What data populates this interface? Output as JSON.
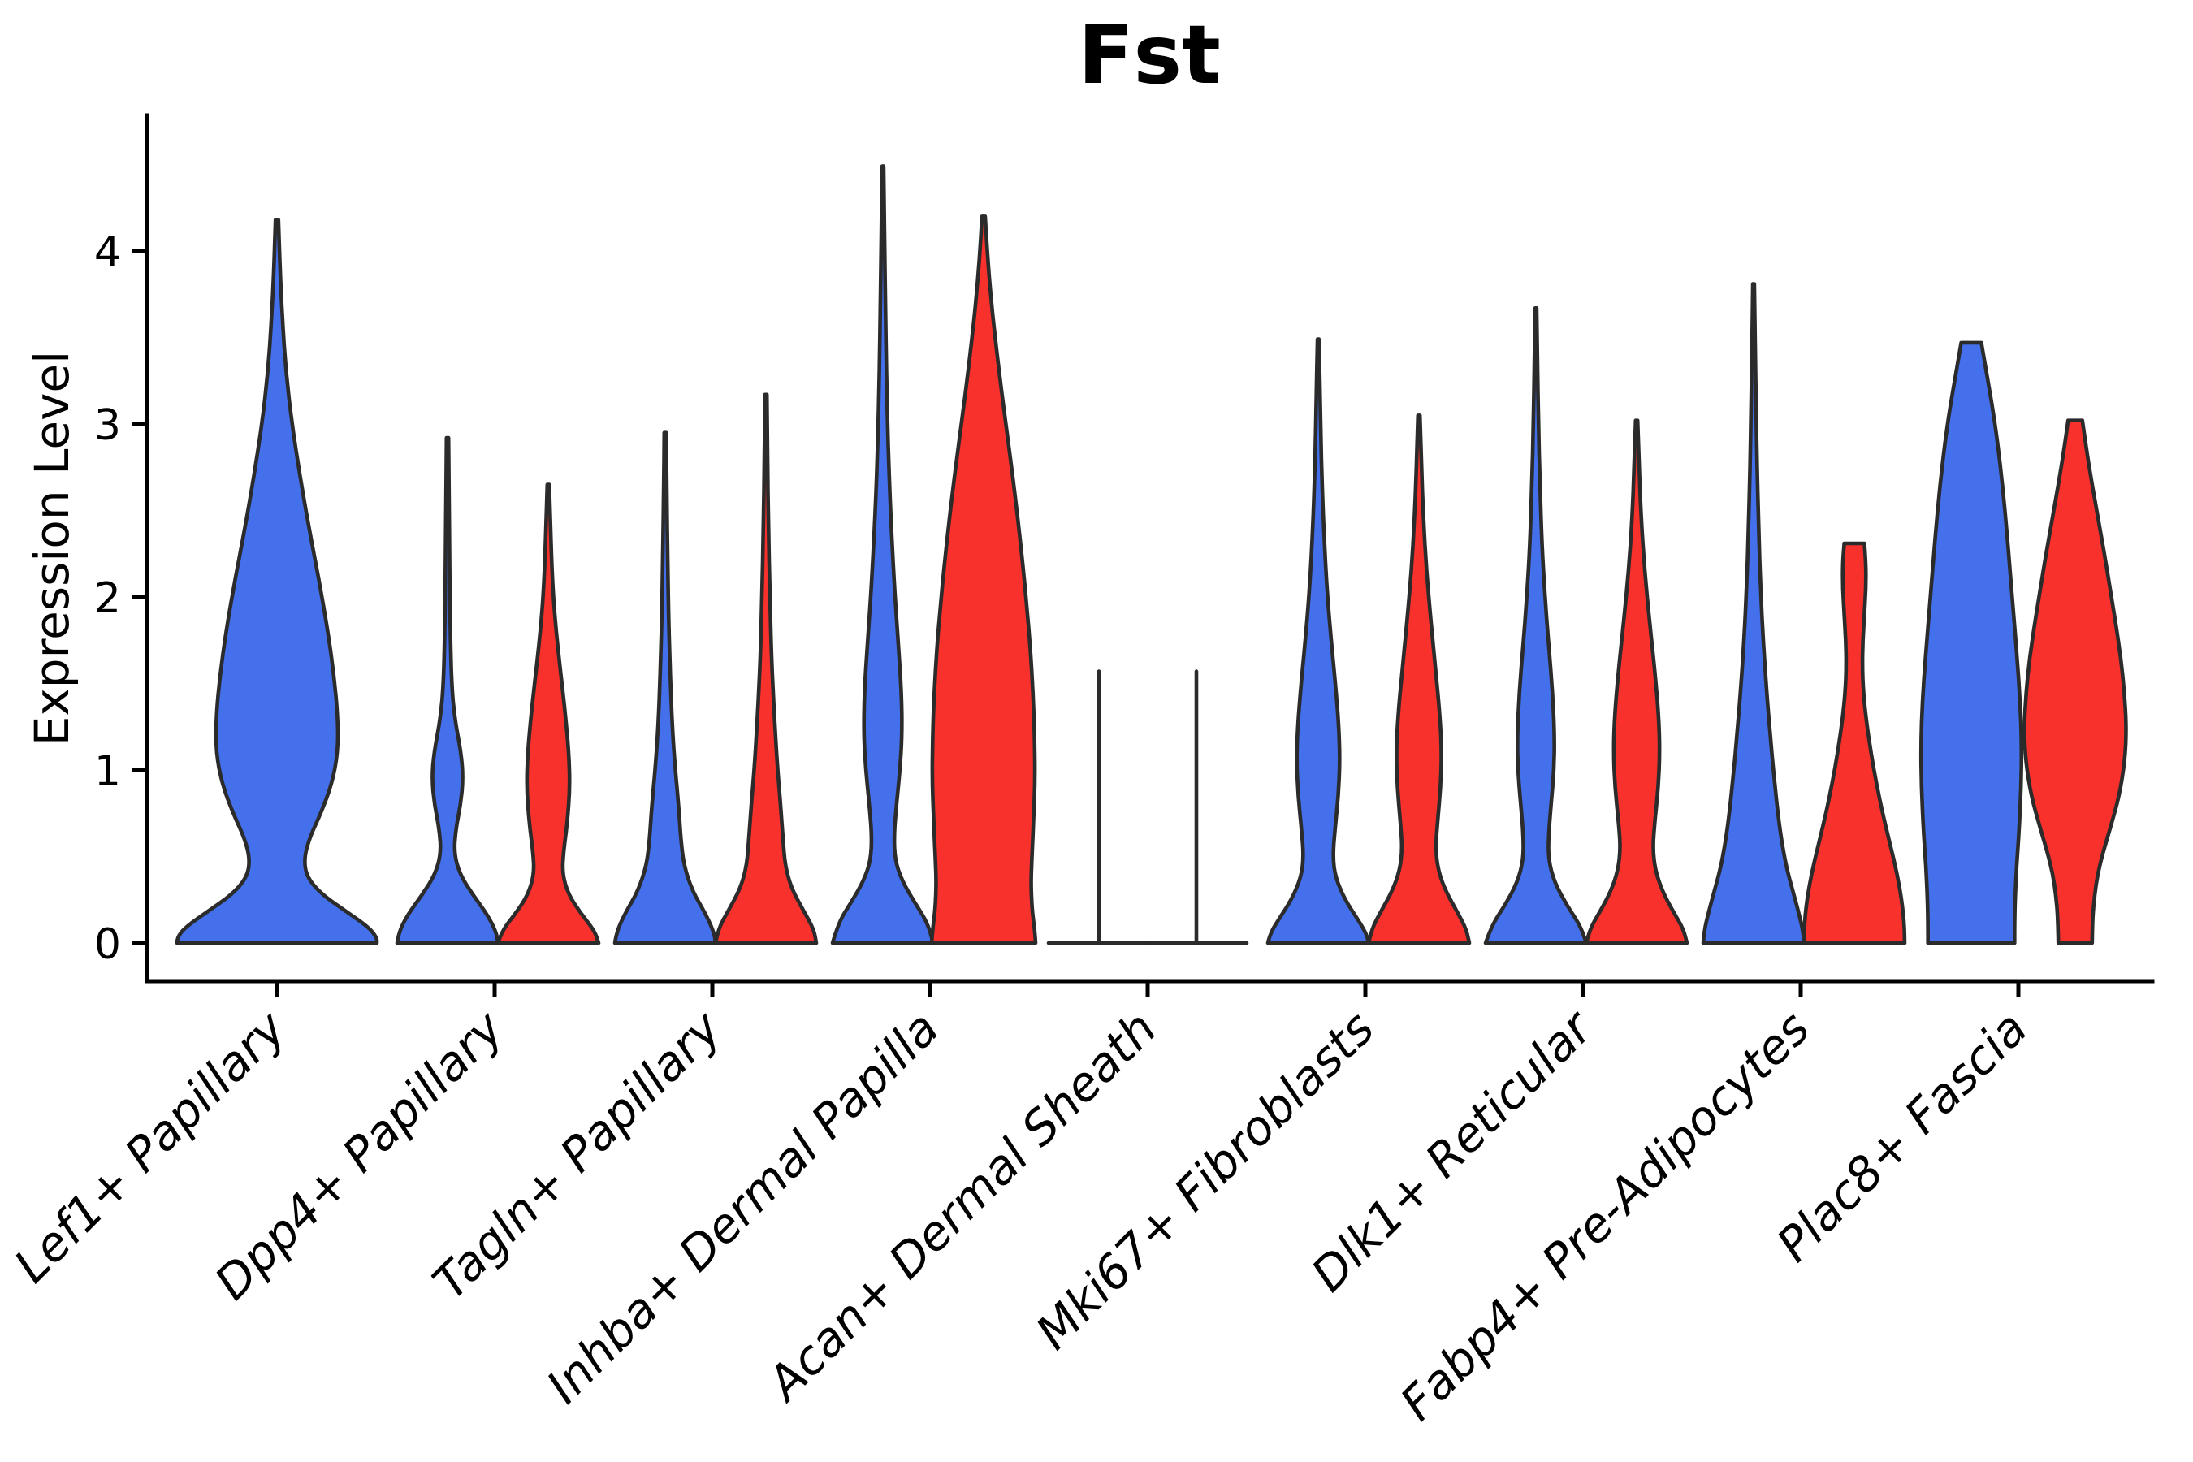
{
  "title": "Fst",
  "y_axis": {
    "label": "Expression Level",
    "ticks": [
      "0",
      "1",
      "2",
      "3",
      "4"
    ]
  },
  "x_axis": {
    "tick_labels": [
      "Lef1+ Papillary",
      "Dpp4+ Papillary",
      "Tagln+ Papillary",
      "Inhba+ Dermal Papilla",
      "Acan+ Dermal Sheath",
      "Mki67+ Fibroblasts",
      "Dlk1+ Reticular",
      "Fabp4+ Pre-Adipocytes",
      "Plac8+ Fascia"
    ]
  },
  "colors": {
    "blue": "#4470EB",
    "red": "#F9312D",
    "outline": "#2B2B2B",
    "axis": "#000000",
    "text": "#000000"
  },
  "chart_data": {
    "type": "violin",
    "title": "Fst",
    "ylabel": "Expression Level",
    "ylim": [
      0,
      4.78
    ],
    "yticks": [
      0,
      1,
      2,
      3,
      4
    ],
    "grid": false,
    "legend": "none",
    "categories": [
      "Lef1+ Papillary",
      "Dpp4+ Papillary",
      "Tagln+ Papillary",
      "Inhba+ Dermal Papilla",
      "Acan+ Dermal Sheath",
      "Mki67+ Fibroblasts",
      "Dlk1+ Reticular",
      "Fabp4+ Pre-Adipocytes",
      "Plac8+ Fascia"
    ],
    "series": [
      {
        "key": "blue",
        "color": "#4470EB"
      },
      {
        "key": "red",
        "color": "#F9312D"
      }
    ],
    "violins": [
      {
        "category_index": 0,
        "series": "blue",
        "shape": "violin",
        "max_expression": 4.18,
        "center_offset": 0,
        "half_width": 123,
        "profile": [
          [
            4.18,
            0.015
          ],
          [
            3.9,
            0.03
          ],
          [
            3.6,
            0.055
          ],
          [
            3.3,
            0.09
          ],
          [
            3.0,
            0.15
          ],
          [
            2.7,
            0.23
          ],
          [
            2.4,
            0.32
          ],
          [
            2.1,
            0.42
          ],
          [
            1.8,
            0.51
          ],
          [
            1.55,
            0.57
          ],
          [
            1.3,
            0.61
          ],
          [
            1.1,
            0.61
          ],
          [
            0.92,
            0.55
          ],
          [
            0.75,
            0.44
          ],
          [
            0.6,
            0.32
          ],
          [
            0.48,
            0.27
          ],
          [
            0.38,
            0.3
          ],
          [
            0.28,
            0.45
          ],
          [
            0.18,
            0.7
          ],
          [
            0.09,
            0.92
          ],
          [
            0.03,
            1.0
          ],
          [
            0,
            1.0
          ]
        ]
      },
      {
        "category_index": 1,
        "series": "blue",
        "shape": "violin",
        "max_expression": 2.92,
        "center_offset": -58,
        "half_width": 62,
        "profile": [
          [
            2.92,
            0.02
          ],
          [
            2.6,
            0.03
          ],
          [
            2.2,
            0.04
          ],
          [
            1.8,
            0.055
          ],
          [
            1.5,
            0.08
          ],
          [
            1.3,
            0.14
          ],
          [
            1.1,
            0.27
          ],
          [
            0.95,
            0.31
          ],
          [
            0.8,
            0.26
          ],
          [
            0.65,
            0.16
          ],
          [
            0.52,
            0.13
          ],
          [
            0.4,
            0.24
          ],
          [
            0.28,
            0.5
          ],
          [
            0.16,
            0.8
          ],
          [
            0.06,
            0.97
          ],
          [
            0,
            1.0
          ]
        ]
      },
      {
        "category_index": 1,
        "series": "red",
        "shape": "violin",
        "max_expression": 2.65,
        "center_offset": 66,
        "half_width": 62,
        "profile": [
          [
            2.65,
            0.02
          ],
          [
            2.4,
            0.045
          ],
          [
            2.1,
            0.08
          ],
          [
            1.85,
            0.14
          ],
          [
            1.6,
            0.23
          ],
          [
            1.35,
            0.33
          ],
          [
            1.1,
            0.41
          ],
          [
            0.9,
            0.43
          ],
          [
            0.7,
            0.38
          ],
          [
            0.52,
            0.3
          ],
          [
            0.4,
            0.28
          ],
          [
            0.28,
            0.4
          ],
          [
            0.17,
            0.65
          ],
          [
            0.07,
            0.92
          ],
          [
            0,
            1.0
          ]
        ]
      },
      {
        "category_index": 2,
        "series": "blue",
        "shape": "violin",
        "max_expression": 2.95,
        "center_offset": -58,
        "half_width": 62,
        "profile": [
          [
            2.95,
            0.02
          ],
          [
            2.6,
            0.03
          ],
          [
            2.2,
            0.05
          ],
          [
            1.85,
            0.07
          ],
          [
            1.55,
            0.1
          ],
          [
            1.25,
            0.14
          ],
          [
            1.0,
            0.2
          ],
          [
            0.78,
            0.27
          ],
          [
            0.6,
            0.31
          ],
          [
            0.45,
            0.37
          ],
          [
            0.3,
            0.54
          ],
          [
            0.17,
            0.8
          ],
          [
            0.06,
            0.97
          ],
          [
            0,
            1.0
          ]
        ]
      },
      {
        "category_index": 2,
        "series": "red",
        "shape": "violin",
        "max_expression": 3.17,
        "center_offset": 66,
        "half_width": 62,
        "profile": [
          [
            3.17,
            0.02
          ],
          [
            2.8,
            0.03
          ],
          [
            2.4,
            0.05
          ],
          [
            2.0,
            0.08
          ],
          [
            1.65,
            0.11
          ],
          [
            1.35,
            0.16
          ],
          [
            1.05,
            0.22
          ],
          [
            0.8,
            0.29
          ],
          [
            0.6,
            0.34
          ],
          [
            0.45,
            0.38
          ],
          [
            0.32,
            0.5
          ],
          [
            0.19,
            0.74
          ],
          [
            0.08,
            0.95
          ],
          [
            0,
            1.0
          ]
        ]
      },
      {
        "category_index": 3,
        "series": "blue",
        "shape": "violin",
        "max_expression": 4.49,
        "center_offset": -58,
        "half_width": 62,
        "profile": [
          [
            4.49,
            0.015
          ],
          [
            4.1,
            0.03
          ],
          [
            3.7,
            0.05
          ],
          [
            3.3,
            0.07
          ],
          [
            2.9,
            0.1
          ],
          [
            2.5,
            0.15
          ],
          [
            2.1,
            0.22
          ],
          [
            1.75,
            0.3
          ],
          [
            1.45,
            0.37
          ],
          [
            1.2,
            0.38
          ],
          [
            1.0,
            0.34
          ],
          [
            0.8,
            0.27
          ],
          [
            0.62,
            0.22
          ],
          [
            0.48,
            0.24
          ],
          [
            0.36,
            0.38
          ],
          [
            0.24,
            0.62
          ],
          [
            0.12,
            0.88
          ],
          [
            0,
            1.0
          ]
        ]
      },
      {
        "category_index": 3,
        "series": "red",
        "shape": "violin",
        "max_expression": 4.2,
        "center_offset": 66,
        "half_width": 64,
        "profile": [
          [
            4.2,
            0.03
          ],
          [
            3.95,
            0.08
          ],
          [
            3.7,
            0.15
          ],
          [
            3.45,
            0.24
          ],
          [
            3.2,
            0.34
          ],
          [
            2.95,
            0.45
          ],
          [
            2.7,
            0.56
          ],
          [
            2.45,
            0.66
          ],
          [
            2.2,
            0.75
          ],
          [
            1.95,
            0.83
          ],
          [
            1.7,
            0.9
          ],
          [
            1.45,
            0.95
          ],
          [
            1.2,
            0.98
          ],
          [
            0.95,
            0.99
          ],
          [
            0.7,
            0.96
          ],
          [
            0.5,
            0.93
          ],
          [
            0.35,
            0.91
          ],
          [
            0.2,
            0.93
          ],
          [
            0.08,
            0.98
          ],
          [
            0,
            1.0
          ]
        ]
      },
      {
        "category_index": 4,
        "series": "blue",
        "shape": "line",
        "max_expression": 1.57,
        "center_offset": -60,
        "half_width": 0,
        "baseline_half_width": 62
      },
      {
        "category_index": 4,
        "series": "red",
        "shape": "line",
        "max_expression": 1.57,
        "center_offset": 60,
        "half_width": 0,
        "baseline_half_width": 62
      },
      {
        "category_index": 5,
        "series": "blue",
        "shape": "violin",
        "max_expression": 3.49,
        "center_offset": -58,
        "half_width": 62,
        "profile": [
          [
            3.49,
            0.015
          ],
          [
            3.15,
            0.04
          ],
          [
            2.8,
            0.06
          ],
          [
            2.45,
            0.1
          ],
          [
            2.1,
            0.16
          ],
          [
            1.8,
            0.24
          ],
          [
            1.5,
            0.34
          ],
          [
            1.25,
            0.41
          ],
          [
            1.05,
            0.43
          ],
          [
            0.85,
            0.4
          ],
          [
            0.65,
            0.33
          ],
          [
            0.5,
            0.29
          ],
          [
            0.38,
            0.34
          ],
          [
            0.25,
            0.53
          ],
          [
            0.13,
            0.8
          ],
          [
            0.05,
            0.96
          ],
          [
            0,
            1.0
          ]
        ]
      },
      {
        "category_index": 5,
        "series": "red",
        "shape": "violin",
        "max_expression": 3.05,
        "center_offset": 66,
        "half_width": 62,
        "profile": [
          [
            3.05,
            0.02
          ],
          [
            2.75,
            0.05
          ],
          [
            2.45,
            0.09
          ],
          [
            2.15,
            0.15
          ],
          [
            1.85,
            0.24
          ],
          [
            1.55,
            0.34
          ],
          [
            1.3,
            0.42
          ],
          [
            1.1,
            0.45
          ],
          [
            0.9,
            0.43
          ],
          [
            0.7,
            0.37
          ],
          [
            0.55,
            0.33
          ],
          [
            0.42,
            0.38
          ],
          [
            0.3,
            0.53
          ],
          [
            0.18,
            0.76
          ],
          [
            0.08,
            0.94
          ],
          [
            0,
            1.0
          ]
        ]
      },
      {
        "category_index": 6,
        "series": "blue",
        "shape": "violin",
        "max_expression": 3.67,
        "center_offset": -58,
        "half_width": 62,
        "profile": [
          [
            3.67,
            0.015
          ],
          [
            3.35,
            0.03
          ],
          [
            3.0,
            0.05
          ],
          [
            2.65,
            0.08
          ],
          [
            2.3,
            0.12
          ],
          [
            2.0,
            0.18
          ],
          [
            1.7,
            0.26
          ],
          [
            1.45,
            0.33
          ],
          [
            1.2,
            0.37
          ],
          [
            1.0,
            0.36
          ],
          [
            0.8,
            0.3
          ],
          [
            0.62,
            0.25
          ],
          [
            0.48,
            0.25
          ],
          [
            0.35,
            0.37
          ],
          [
            0.22,
            0.61
          ],
          [
            0.1,
            0.88
          ],
          [
            0,
            1.0
          ]
        ]
      },
      {
        "category_index": 6,
        "series": "red",
        "shape": "violin",
        "max_expression": 3.02,
        "center_offset": 66,
        "half_width": 62,
        "profile": [
          [
            3.02,
            0.02
          ],
          [
            2.75,
            0.05
          ],
          [
            2.45,
            0.09
          ],
          [
            2.15,
            0.16
          ],
          [
            1.85,
            0.26
          ],
          [
            1.55,
            0.37
          ],
          [
            1.3,
            0.44
          ],
          [
            1.1,
            0.46
          ],
          [
            0.9,
            0.43
          ],
          [
            0.7,
            0.36
          ],
          [
            0.55,
            0.32
          ],
          [
            0.42,
            0.37
          ],
          [
            0.3,
            0.51
          ],
          [
            0.18,
            0.73
          ],
          [
            0.08,
            0.93
          ],
          [
            0,
            1.0
          ]
        ]
      },
      {
        "category_index": 7,
        "series": "blue",
        "shape": "violin",
        "max_expression": 3.81,
        "center_offset": -58,
        "half_width": 62,
        "profile": [
          [
            3.81,
            0.015
          ],
          [
            3.45,
            0.03
          ],
          [
            3.1,
            0.05
          ],
          [
            2.75,
            0.07
          ],
          [
            2.4,
            0.1
          ],
          [
            2.05,
            0.14
          ],
          [
            1.75,
            0.19
          ],
          [
            1.45,
            0.26
          ],
          [
            1.2,
            0.33
          ],
          [
            0.98,
            0.4
          ],
          [
            0.78,
            0.47
          ],
          [
            0.6,
            0.55
          ],
          [
            0.44,
            0.65
          ],
          [
            0.3,
            0.78
          ],
          [
            0.17,
            0.9
          ],
          [
            0.07,
            0.98
          ],
          [
            0,
            1.0
          ]
        ]
      },
      {
        "category_index": 7,
        "series": "red",
        "shape": "violin",
        "max_expression": 2.31,
        "center_offset": 66,
        "half_width": 62,
        "profile": [
          [
            2.31,
            0.2
          ],
          [
            2.2,
            0.23
          ],
          [
            2.05,
            0.23
          ],
          [
            1.9,
            0.2
          ],
          [
            1.75,
            0.17
          ],
          [
            1.6,
            0.16
          ],
          [
            1.45,
            0.18
          ],
          [
            1.28,
            0.24
          ],
          [
            1.1,
            0.33
          ],
          [
            0.92,
            0.44
          ],
          [
            0.74,
            0.57
          ],
          [
            0.56,
            0.72
          ],
          [
            0.4,
            0.85
          ],
          [
            0.25,
            0.94
          ],
          [
            0.12,
            0.99
          ],
          [
            0,
            1.0
          ]
        ]
      },
      {
        "category_index": 8,
        "series": "blue",
        "shape": "violin",
        "max_expression": 3.47,
        "center_offset": -58,
        "half_width": 62,
        "profile": [
          [
            3.47,
            0.2
          ],
          [
            3.3,
            0.3
          ],
          [
            3.1,
            0.42
          ],
          [
            2.9,
            0.52
          ],
          [
            2.65,
            0.62
          ],
          [
            2.4,
            0.7
          ],
          [
            2.15,
            0.77
          ],
          [
            1.9,
            0.84
          ],
          [
            1.65,
            0.91
          ],
          [
            1.4,
            0.97
          ],
          [
            1.15,
            1.0
          ],
          [
            0.9,
            0.99
          ],
          [
            0.65,
            0.95
          ],
          [
            0.45,
            0.9
          ],
          [
            0.25,
            0.87
          ],
          [
            0.1,
            0.86
          ],
          [
            0,
            0.86
          ]
        ]
      },
      {
        "category_index": 8,
        "series": "red",
        "shape": "violin",
        "max_expression": 3.02,
        "center_offset": 70,
        "half_width": 63,
        "profile": [
          [
            3.02,
            0.14
          ],
          [
            2.85,
            0.22
          ],
          [
            2.65,
            0.33
          ],
          [
            2.45,
            0.45
          ],
          [
            2.25,
            0.57
          ],
          [
            2.05,
            0.68
          ],
          [
            1.85,
            0.79
          ],
          [
            1.65,
            0.89
          ],
          [
            1.45,
            0.96
          ],
          [
            1.25,
            1.0
          ],
          [
            1.05,
            0.97
          ],
          [
            0.85,
            0.86
          ],
          [
            0.68,
            0.7
          ],
          [
            0.52,
            0.54
          ],
          [
            0.4,
            0.44
          ],
          [
            0.28,
            0.38
          ],
          [
            0.15,
            0.34
          ],
          [
            0,
            0.33
          ]
        ]
      }
    ]
  }
}
